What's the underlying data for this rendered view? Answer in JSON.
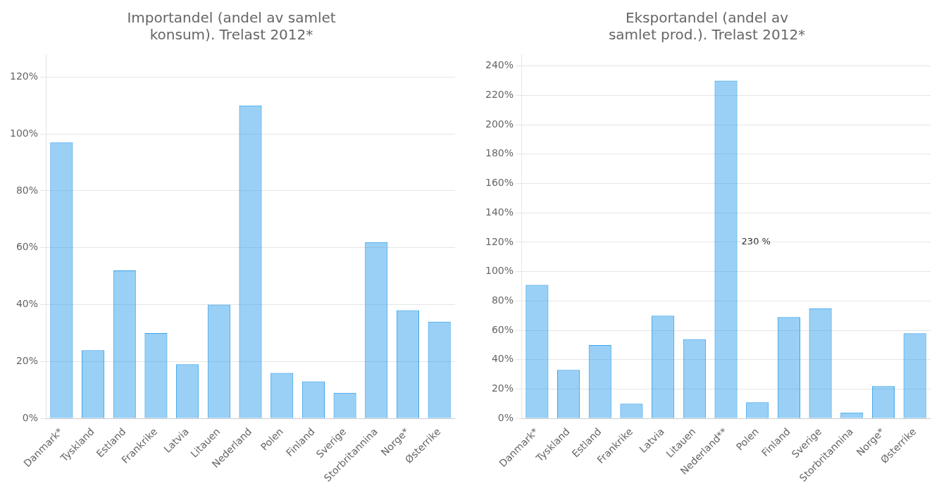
{
  "chart_data": [
    {
      "type": "bar",
      "title": "Importandel (andel av samlet\nkonsum). Trelast 2012*",
      "categories": [
        "Danmark*",
        "Tyskland",
        "Estland",
        "Frankrike",
        "Latvia",
        "Litauen",
        "Nederland",
        "Polen",
        "Finland",
        "Sverige",
        "Storbritannina",
        "Norge*",
        "Østerrike"
      ],
      "values": [
        0.97,
        0.24,
        0.52,
        0.3,
        0.19,
        0.4,
        1.1,
        0.16,
        0.13,
        0.09,
        0.62,
        0.38,
        0.34
      ],
      "ylim": [
        0,
        1.28
      ],
      "yticks": [
        {
          "value": 0.0,
          "label": "0%"
        },
        {
          "value": 0.2,
          "label": "20%"
        },
        {
          "value": 0.4,
          "label": "40%"
        },
        {
          "value": 0.6,
          "label": "60%"
        },
        {
          "value": 0.8,
          "label": "80%"
        },
        {
          "value": 1.0,
          "label": "100%"
        },
        {
          "value": 1.2,
          "label": "120%"
        }
      ],
      "grid": true
    },
    {
      "type": "bar",
      "title": "Eksportandel (andel av\nsamlet prod.). Trelast 2012*",
      "categories": [
        "Danmark*",
        "Tyskland",
        "Estland",
        "Frankrike",
        "Latvia",
        "Litauen",
        "Nederland**",
        "Polen",
        "Finland",
        "Sverige",
        "Storbritannina",
        "Norge*",
        "Østerrike"
      ],
      "values": [
        0.91,
        0.33,
        0.5,
        0.1,
        0.7,
        0.54,
        2.3,
        0.11,
        0.69,
        0.75,
        0.04,
        0.22,
        0.58
      ],
      "ylim": [
        0,
        2.48
      ],
      "yticks": [
        {
          "value": 0.0,
          "label": "0%"
        },
        {
          "value": 0.2,
          "label": "20%"
        },
        {
          "value": 0.4,
          "label": "40%"
        },
        {
          "value": 0.6,
          "label": "60%"
        },
        {
          "value": 0.8,
          "label": "80%"
        },
        {
          "value": 1.0,
          "label": "100%"
        },
        {
          "value": 1.2,
          "label": "120%"
        },
        {
          "value": 1.4,
          "label": "140%"
        },
        {
          "value": 1.6,
          "label": "160%"
        },
        {
          "value": 1.8,
          "label": "180%"
        },
        {
          "value": 2.0,
          "label": "200%"
        },
        {
          "value": 2.2,
          "label": "220%"
        },
        {
          "value": 2.4,
          "label": "240%"
        }
      ],
      "annotations": [
        {
          "text": "230 %",
          "x": "Nederland**",
          "y": 1.2
        }
      ],
      "grid": true
    }
  ]
}
